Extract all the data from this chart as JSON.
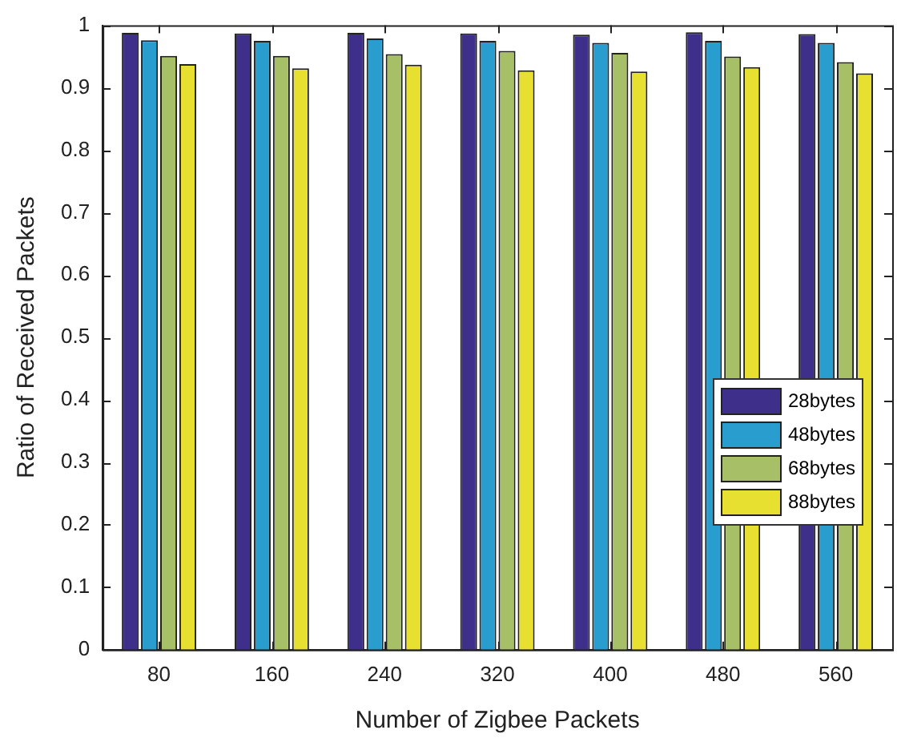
{
  "chart_data": {
    "type": "bar",
    "xlabel": "Number of Zigbee Packets",
    "ylabel": "Ratio of Received Packets",
    "categories": [
      "80",
      "160",
      "240",
      "320",
      "400",
      "480",
      "560"
    ],
    "series": [
      {
        "name": "28bytes",
        "color": "#3e2f8a",
        "values": [
          0.988,
          0.987,
          0.988,
          0.987,
          0.985,
          0.989,
          0.986
        ]
      },
      {
        "name": "48bytes",
        "color": "#2a9dcf",
        "values": [
          0.976,
          0.975,
          0.979,
          0.975,
          0.972,
          0.975,
          0.972
        ]
      },
      {
        "name": "68bytes",
        "color": "#a7c068",
        "values": [
          0.951,
          0.951,
          0.954,
          0.959,
          0.956,
          0.95,
          0.941
        ]
      },
      {
        "name": "88bytes",
        "color": "#e8e030",
        "values": [
          0.938,
          0.931,
          0.937,
          0.928,
          0.926,
          0.933,
          0.923
        ]
      }
    ],
    "ylim": [
      0,
      1
    ],
    "yticks": [
      0,
      0.1,
      0.2,
      0.3,
      0.4,
      0.5,
      0.6,
      0.7,
      0.8,
      0.9,
      1
    ],
    "grid": false,
    "legend": "right"
  }
}
